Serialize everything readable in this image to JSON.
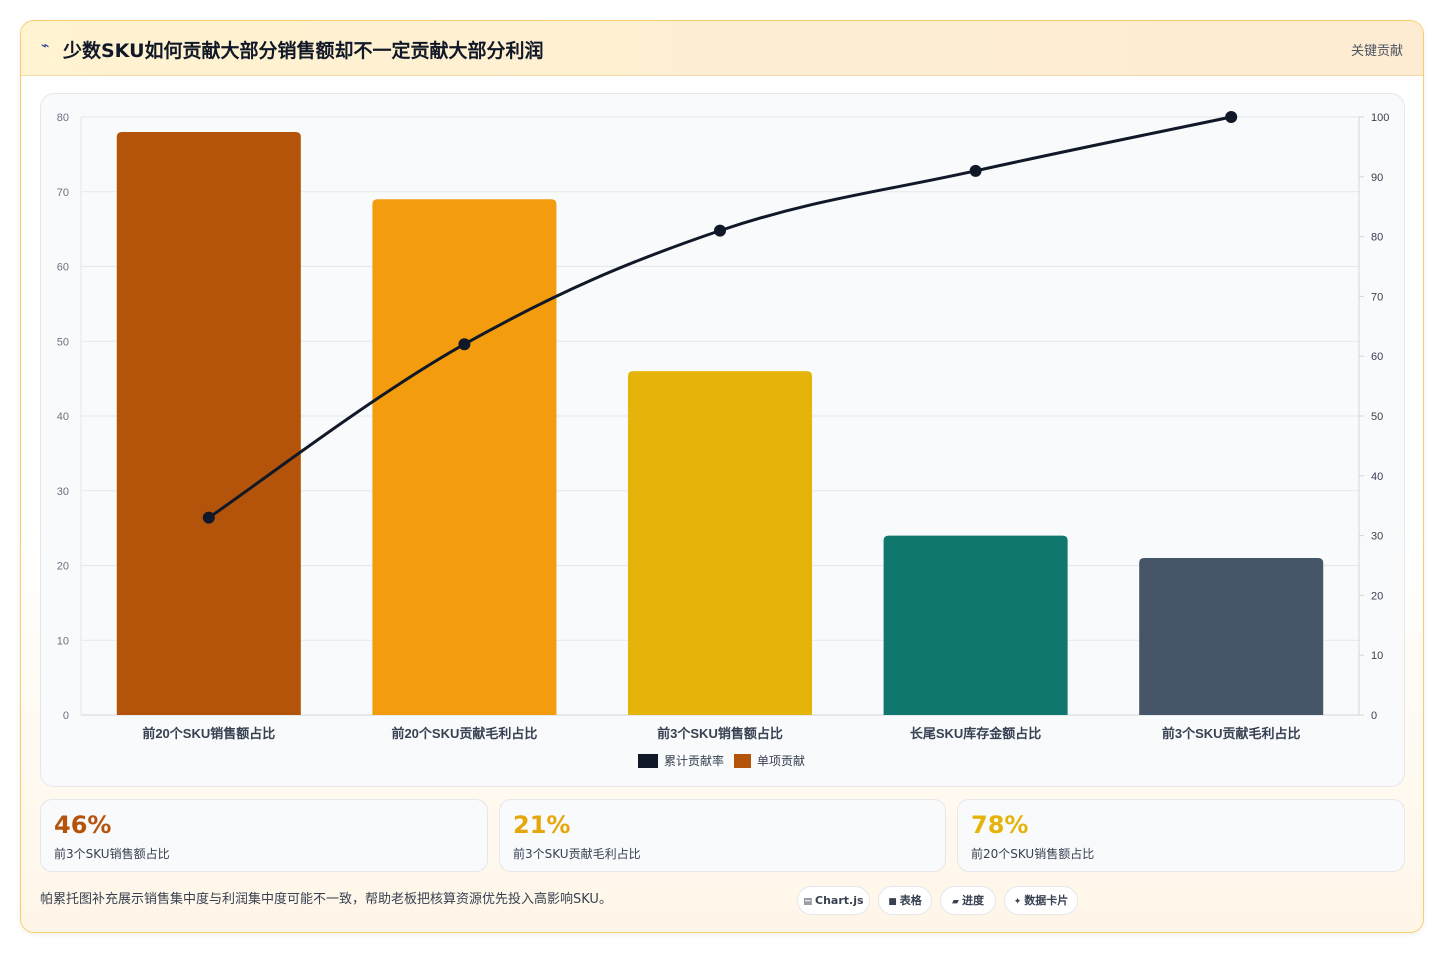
{
  "header": {
    "icon": "bolt-icon",
    "title": "少数SKU如何贡献大部分销售额却不一定贡献大部分利润",
    "tag": "关键贡献"
  },
  "chart_data": {
    "type": "bar",
    "categories": [
      "前20个SKU销售额占比",
      "前20个SKU贡献毛利占比",
      "前3个SKU销售额占比",
      "长尾SKU库存金额占比",
      "前3个SKU贡献毛利占比"
    ],
    "series": [
      {
        "name": "累计贡献率",
        "type": "line",
        "axis": "right",
        "color": "#111827",
        "values": [
          33,
          62,
          81,
          91,
          100
        ]
      },
      {
        "name": "单项贡献",
        "type": "bar",
        "axis": "left",
        "colors": [
          "#b4540b",
          "#f29c0e",
          "#e5b40b",
          "#10776f",
          "#475569"
        ],
        "legend_color": "#b4540b",
        "values": [
          78,
          69,
          46,
          24,
          21
        ]
      }
    ],
    "ylim": [
      0,
      80
    ],
    "y_ticks": [
      "0",
      "10",
      "20",
      "30",
      "40",
      "50",
      "60",
      "70",
      "80"
    ],
    "y2lim": [
      0,
      100
    ],
    "y2_ticks": [
      "0",
      "10",
      "20",
      "30",
      "40",
      "50",
      "60",
      "70",
      "80",
      "90",
      "100"
    ],
    "grid": true,
    "legend_position": "bottom"
  },
  "kpis": [
    {
      "value": "46%",
      "label": "前3个SKU销售额占比",
      "color": "#b4540b"
    },
    {
      "value": "21%",
      "label": "前3个SKU贡献毛利占比",
      "color": "#e5a70b"
    },
    {
      "value": "78%",
      "label": "前20个SKU销售额占比",
      "color": "#e5b40b"
    }
  ],
  "note": "帕累托图补充展示销售集中度与利润集中度可能不一致，帮助老板把核算资源优先投入高影响SKU。",
  "pills": [
    {
      "icon": "▤",
      "label": "Chart.js"
    },
    {
      "icon": "■",
      "label": "表格"
    },
    {
      "icon": "▰",
      "label": "进度"
    },
    {
      "icon": "✦",
      "label": "数据卡片"
    }
  ]
}
